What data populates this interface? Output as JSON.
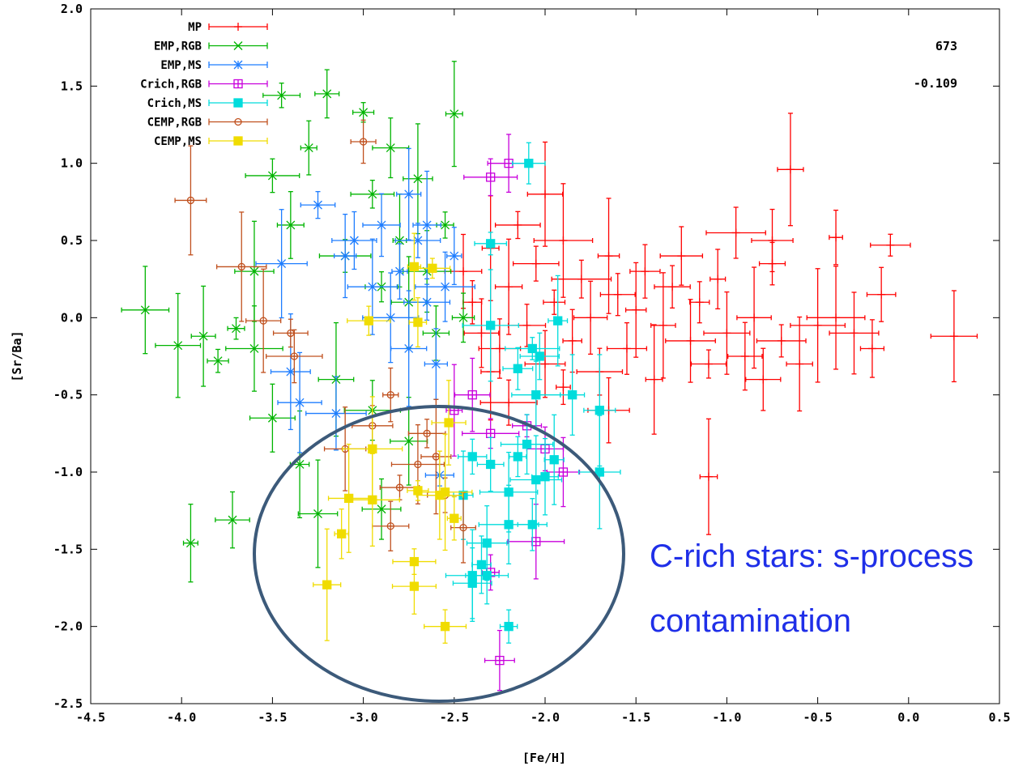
{
  "chart_data": {
    "type": "scatter",
    "xlabel": "[Fe/H]",
    "ylabel": "[Sr/Ba]",
    "xlim": [
      -4.5,
      0.5
    ],
    "ylim": [
      -2.5,
      2.0
    ],
    "xticks": [
      "-4.5",
      "-4.0",
      "-3.5",
      "-3.0",
      "-2.5",
      "-2.0",
      "-1.5",
      "-1.0",
      "-0.5",
      "0.0",
      "0.5"
    ],
    "yticks": [
      "2.0",
      "1.5",
      "1.0",
      "0.5",
      "0.0",
      "-0.5",
      "-1.0",
      "-1.5",
      "-2.0",
      "-2.5"
    ],
    "grid": false,
    "legend_position": "top-left",
    "stats": [
      "673",
      "-0.109"
    ],
    "annotation": {
      "lines": [
        "C-rich stars: s-process",
        "contamination"
      ],
      "color": "#1f2fe8"
    },
    "series": [
      {
        "name": "MP",
        "color": "#ff0000",
        "marker": "plus",
        "points": [
          [
            -2.45,
            0.3
          ],
          [
            -2.4,
            0.1
          ],
          [
            -2.35,
            -0.1
          ],
          [
            -2.3,
            0.45
          ],
          [
            -2.25,
            -0.2
          ],
          [
            -2.2,
            0.2
          ],
          [
            -2.15,
            0.6
          ],
          [
            -2.1,
            -0.05
          ],
          [
            -2.05,
            0.35
          ],
          [
            -2.0,
            -0.3
          ],
          [
            -1.95,
            0.1
          ],
          [
            -1.9,
            0.5
          ],
          [
            -1.85,
            -0.15
          ],
          [
            -1.8,
            0.25
          ],
          [
            -1.75,
            0.0
          ],
          [
            -1.7,
            -0.35
          ],
          [
            -1.65,
            0.4
          ],
          [
            -1.6,
            0.15
          ],
          [
            -1.55,
            -0.2
          ],
          [
            -1.5,
            0.05
          ],
          [
            -1.45,
            0.3
          ],
          [
            -1.4,
            -0.4
          ],
          [
            -1.35,
            -0.05
          ],
          [
            -1.3,
            0.2
          ],
          [
            -1.25,
            0.4
          ],
          [
            -1.2,
            -0.15
          ],
          [
            -1.15,
            0.1
          ],
          [
            -1.1,
            -0.3
          ],
          [
            -1.05,
            0.25
          ],
          [
            -1.0,
            -0.1
          ],
          [
            -0.95,
            0.55
          ],
          [
            -0.9,
            -0.25
          ],
          [
            -0.85,
            0.0
          ],
          [
            -0.8,
            -0.4
          ],
          [
            -0.75,
            0.35
          ],
          [
            -0.7,
            -0.15
          ],
          [
            -0.6,
            -0.3
          ],
          [
            -0.5,
            -0.05
          ],
          [
            -0.4,
            0.0
          ],
          [
            -0.3,
            -0.1
          ],
          [
            -0.1,
            0.47
          ],
          [
            -0.15,
            0.15
          ],
          [
            -0.2,
            -0.2
          ],
          [
            0.25,
            -0.12
          ],
          [
            -0.65,
            0.96
          ],
          [
            -0.4,
            0.52
          ],
          [
            -0.75,
            0.5
          ],
          [
            -1.1,
            -1.03
          ],
          [
            -2.0,
            0.8
          ],
          [
            -1.65,
            -0.6
          ],
          [
            -2.3,
            -0.35
          ],
          [
            -2.2,
            -0.55
          ],
          [
            -1.9,
            -0.45
          ]
        ]
      },
      {
        "name": "EMP,RGB",
        "color": "#00b400",
        "marker": "x",
        "points": [
          [
            -4.2,
            0.05
          ],
          [
            -4.02,
            -0.18
          ],
          [
            -3.88,
            -0.12
          ],
          [
            -3.8,
            -0.28
          ],
          [
            -3.7,
            -0.07
          ],
          [
            -3.6,
            0.3
          ],
          [
            -3.5,
            0.92
          ],
          [
            -3.45,
            1.44
          ],
          [
            -3.4,
            0.6
          ],
          [
            -3.3,
            1.1
          ],
          [
            -3.2,
            1.45
          ],
          [
            -3.1,
            0.4
          ],
          [
            -3.0,
            1.33
          ],
          [
            -2.95,
            0.8
          ],
          [
            -2.9,
            0.2
          ],
          [
            -2.85,
            1.1
          ],
          [
            -2.8,
            0.5
          ],
          [
            -2.75,
            0.1
          ],
          [
            -2.7,
            0.9
          ],
          [
            -2.65,
            0.3
          ],
          [
            -2.6,
            -0.1
          ],
          [
            -2.5,
            1.32
          ],
          [
            -2.55,
            0.6
          ],
          [
            -2.45,
            0.0
          ],
          [
            -3.95,
            -1.46
          ],
          [
            -3.72,
            -1.31
          ],
          [
            -3.25,
            -1.27
          ],
          [
            -2.9,
            -1.24
          ],
          [
            -3.35,
            -0.95
          ],
          [
            -3.5,
            -0.65
          ],
          [
            -3.6,
            -0.2
          ],
          [
            -3.15,
            -0.4
          ],
          [
            -2.95,
            -0.6
          ],
          [
            -2.75,
            -0.8
          ]
        ]
      },
      {
        "name": "EMP,MS",
        "color": "#1e7dff",
        "marker": "star",
        "points": [
          [
            -3.45,
            0.35
          ],
          [
            -3.4,
            -0.35
          ],
          [
            -3.35,
            -0.55
          ],
          [
            -3.25,
            0.73
          ],
          [
            -3.15,
            -0.62
          ],
          [
            -3.05,
            0.5
          ],
          [
            -2.95,
            0.2
          ],
          [
            -2.9,
            0.6
          ],
          [
            -2.85,
            0.0
          ],
          [
            -2.8,
            0.3
          ],
          [
            -2.75,
            -0.2
          ],
          [
            -2.7,
            0.5
          ],
          [
            -2.65,
            0.1
          ],
          [
            -2.6,
            -0.3
          ],
          [
            -2.58,
            -1.02
          ],
          [
            -2.55,
            0.2
          ],
          [
            -2.5,
            0.4
          ],
          [
            -3.1,
            0.4
          ],
          [
            -2.75,
            0.8
          ],
          [
            -2.65,
            0.6
          ]
        ]
      },
      {
        "name": "Crich,RGB",
        "color": "#c800dc",
        "marker": "opensquare",
        "points": [
          [
            -2.2,
            1.0
          ],
          [
            -2.3,
            0.91
          ],
          [
            -2.25,
            -2.22
          ],
          [
            -2.05,
            -1.45
          ],
          [
            -2.3,
            -1.65
          ],
          [
            -2.0,
            -0.85
          ],
          [
            -1.9,
            -1.0
          ],
          [
            -2.1,
            -0.7
          ],
          [
            -2.5,
            -0.6
          ],
          [
            -2.4,
            -0.5
          ],
          [
            -2.3,
            -0.75
          ]
        ]
      },
      {
        "name": "Crich,MS",
        "color": "#00dcdc",
        "marker": "filledsquare",
        "points": [
          [
            -2.09,
            1.0
          ],
          [
            -2.3,
            0.48
          ],
          [
            -1.93,
            -0.02
          ],
          [
            -2.07,
            -0.2
          ],
          [
            -2.03,
            -0.25
          ],
          [
            -2.15,
            -0.33
          ],
          [
            -2.05,
            -0.5
          ],
          [
            -1.85,
            -0.5
          ],
          [
            -2.3,
            -0.05
          ],
          [
            -1.7,
            -0.6
          ],
          [
            -2.1,
            -0.82
          ],
          [
            -2.15,
            -0.9
          ],
          [
            -1.95,
            -0.92
          ],
          [
            -1.7,
            -1.0
          ],
          [
            -2.3,
            -0.95
          ],
          [
            -2.4,
            -0.9
          ],
          [
            -2.2,
            -1.13
          ],
          [
            -2.05,
            -1.05
          ],
          [
            -2.0,
            -1.03
          ],
          [
            -2.45,
            -1.15
          ],
          [
            -2.2,
            -1.34
          ],
          [
            -2.07,
            -1.34
          ],
          [
            -2.32,
            -1.46
          ],
          [
            -2.35,
            -1.6
          ],
          [
            -2.4,
            -1.67
          ],
          [
            -2.4,
            -1.72
          ],
          [
            -2.32,
            -1.67
          ],
          [
            -2.2,
            -2.0
          ]
        ]
      },
      {
        "name": "CEMP,RGB",
        "color": "#c0501e",
        "marker": "opencircle",
        "points": [
          [
            -3.95,
            0.76
          ],
          [
            -3.67,
            0.33
          ],
          [
            -3.55,
            -0.02
          ],
          [
            -3.4,
            -0.1
          ],
          [
            -3.38,
            -0.25
          ],
          [
            -3.0,
            1.14
          ],
          [
            -2.85,
            -0.5
          ],
          [
            -2.6,
            -0.9
          ],
          [
            -2.7,
            -0.95
          ],
          [
            -2.8,
            -1.1
          ],
          [
            -2.55,
            -1.15
          ],
          [
            -2.85,
            -1.35
          ],
          [
            -2.45,
            -1.36
          ],
          [
            -2.95,
            -0.7
          ],
          [
            -3.1,
            -0.85
          ],
          [
            -2.65,
            -0.75
          ]
        ]
      },
      {
        "name": "CEMP,MS",
        "color": "#f0dc00",
        "marker": "filledsquare",
        "points": [
          [
            -2.72,
            0.33
          ],
          [
            -2.62,
            0.32
          ],
          [
            -2.97,
            -0.02
          ],
          [
            -2.7,
            -0.03
          ],
          [
            -2.53,
            -0.68
          ],
          [
            -2.95,
            -0.85
          ],
          [
            -2.7,
            -1.12
          ],
          [
            -2.55,
            -1.13
          ],
          [
            -2.95,
            -1.18
          ],
          [
            -3.08,
            -1.17
          ],
          [
            -3.12,
            -1.4
          ],
          [
            -2.72,
            -1.58
          ],
          [
            -2.72,
            -1.74
          ],
          [
            -3.2,
            -1.73
          ],
          [
            -2.55,
            -2.0
          ],
          [
            -2.58,
            -1.15
          ],
          [
            -2.5,
            -1.3
          ]
        ]
      }
    ]
  }
}
